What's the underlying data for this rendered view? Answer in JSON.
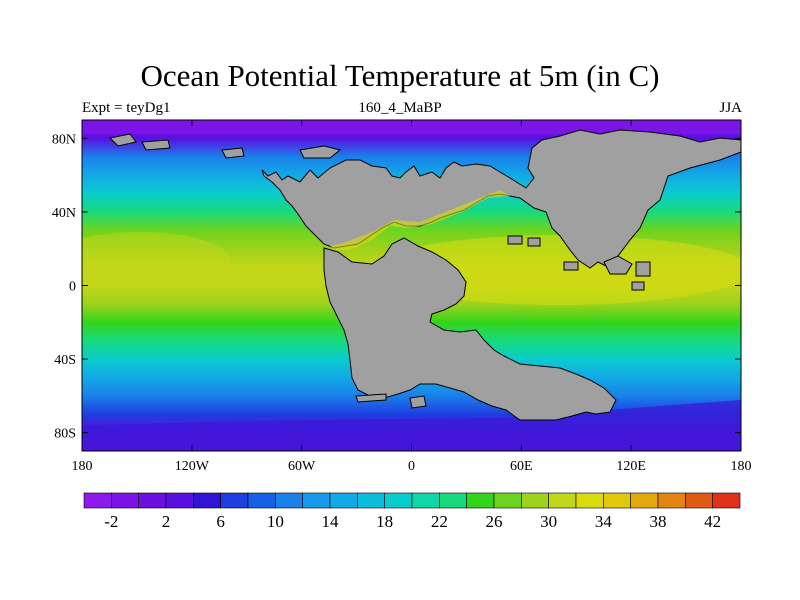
{
  "title": "Ocean Potential Temperature at 5m (in C)",
  "subtitle_left": "Expt = teyDg1",
  "subtitle_center": "160_4_MaBP",
  "subtitle_right": "JJA",
  "map": {
    "lon_range": [
      -180,
      180
    ],
    "lat_range": [
      -90,
      90
    ],
    "x_ticks": [
      {
        "value": -180,
        "label": "180"
      },
      {
        "value": -120,
        "label": "120W"
      },
      {
        "value": -60,
        "label": "60W"
      },
      {
        "value": 0,
        "label": "0"
      },
      {
        "value": 60,
        "label": "60E"
      },
      {
        "value": 120,
        "label": "120E"
      },
      {
        "value": 180,
        "label": "180"
      }
    ],
    "y_ticks": [
      {
        "value": 80,
        "label": "80N"
      },
      {
        "value": 40,
        "label": "40N"
      },
      {
        "value": 0,
        "label": "0"
      },
      {
        "value": -40,
        "label": "40S"
      },
      {
        "value": -80,
        "label": "80S"
      }
    ],
    "land_color": "#a0a0a0",
    "temperature_bands": [
      {
        "lat": 90,
        "value": -3
      },
      {
        "lat": 80,
        "value": 3
      },
      {
        "lat": 70,
        "value": 10
      },
      {
        "lat": 60,
        "value": 14
      },
      {
        "lat": 50,
        "value": 18
      },
      {
        "lat": 40,
        "value": 23
      },
      {
        "lat": 30,
        "value": 27
      },
      {
        "lat": 20,
        "value": 29
      },
      {
        "lat": 10,
        "value": 30
      },
      {
        "lat": 0,
        "value": 30
      },
      {
        "lat": -10,
        "value": 28
      },
      {
        "lat": -20,
        "value": 25
      },
      {
        "lat": -30,
        "value": 22
      },
      {
        "lat": -40,
        "value": 18
      },
      {
        "lat": -50,
        "value": 14
      },
      {
        "lat": -60,
        "value": 10
      },
      {
        "lat": -70,
        "value": 6
      },
      {
        "lat": -80,
        "value": 2
      },
      {
        "lat": -90,
        "value": 0
      }
    ]
  },
  "colorbar": {
    "levels": [
      -4,
      -2,
      0,
      2,
      4,
      6,
      8,
      10,
      12,
      14,
      16,
      18,
      20,
      22,
      24,
      26,
      28,
      30,
      32,
      34,
      36,
      38,
      40,
      42,
      44
    ],
    "label_values": [
      "-2",
      "2",
      "6",
      "10",
      "14",
      "18",
      "22",
      "26",
      "30",
      "34",
      "38",
      "42"
    ],
    "colors": [
      "#8c1aeb",
      "#7d13e8",
      "#6e0fe0",
      "#5a10e0",
      "#3414d4",
      "#1e3ee0",
      "#1460e6",
      "#1a80ea",
      "#1898e8",
      "#12aae6",
      "#0abedc",
      "#0acccc",
      "#10d6a8",
      "#18da7c",
      "#34d41c",
      "#6cd41e",
      "#9ed21c",
      "#c2d61a",
      "#dadc10",
      "#e2c80c",
      "#e2a810",
      "#e08412",
      "#e05a14",
      "#e0301a"
    ]
  }
}
